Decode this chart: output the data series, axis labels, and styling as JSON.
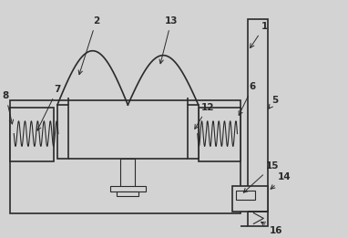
{
  "bg_color": "#d3d3d3",
  "line_color": "#2a2a2a",
  "lw": 1.2,
  "tlw": 0.8,
  "fig_w": 3.82,
  "fig_h": 2.61,
  "dpi": 100
}
